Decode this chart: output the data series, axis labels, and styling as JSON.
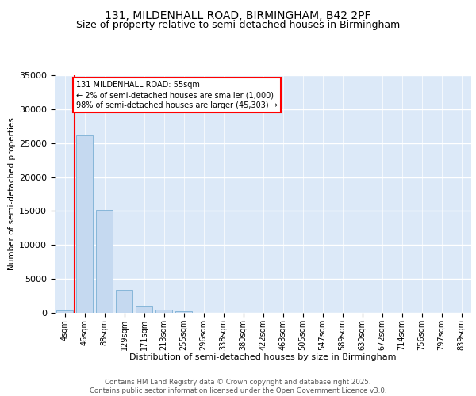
{
  "title_line1": "131, MILDENHALL ROAD, BIRMINGHAM, B42 2PF",
  "title_line2": "Size of property relative to semi-detached houses in Birmingham",
  "xlabel": "Distribution of semi-detached houses by size in Birmingham",
  "ylabel": "Number of semi-detached properties",
  "categories": [
    "4sqm",
    "46sqm",
    "88sqm",
    "129sqm",
    "171sqm",
    "213sqm",
    "255sqm",
    "296sqm",
    "338sqm",
    "380sqm",
    "422sqm",
    "463sqm",
    "505sqm",
    "547sqm",
    "589sqm",
    "630sqm",
    "672sqm",
    "714sqm",
    "756sqm",
    "797sqm",
    "839sqm"
  ],
  "values": [
    400,
    26100,
    15200,
    3350,
    1050,
    500,
    200,
    0,
    0,
    0,
    0,
    0,
    0,
    0,
    0,
    0,
    0,
    0,
    0,
    0,
    0
  ],
  "bar_color": "#c5d9f0",
  "bar_edge_color": "#7bafd4",
  "annotation_text": "131 MILDENHALL ROAD: 55sqm\n← 2% of semi-detached houses are smaller (1,000)\n98% of semi-detached houses are larger (45,303) →",
  "annotation_box_facecolor": "white",
  "annotation_box_edgecolor": "red",
  "ylim": [
    0,
    35000
  ],
  "yticks": [
    0,
    5000,
    10000,
    15000,
    20000,
    25000,
    30000,
    35000
  ],
  "background_color": "#dce9f8",
  "grid_color": "white",
  "footer_text": "Contains HM Land Registry data © Crown copyright and database right 2025.\nContains public sector information licensed under the Open Government Licence v3.0.",
  "title_fontsize": 10,
  "subtitle_fontsize": 9,
  "vline_x": 0.5,
  "vline_color": "red"
}
